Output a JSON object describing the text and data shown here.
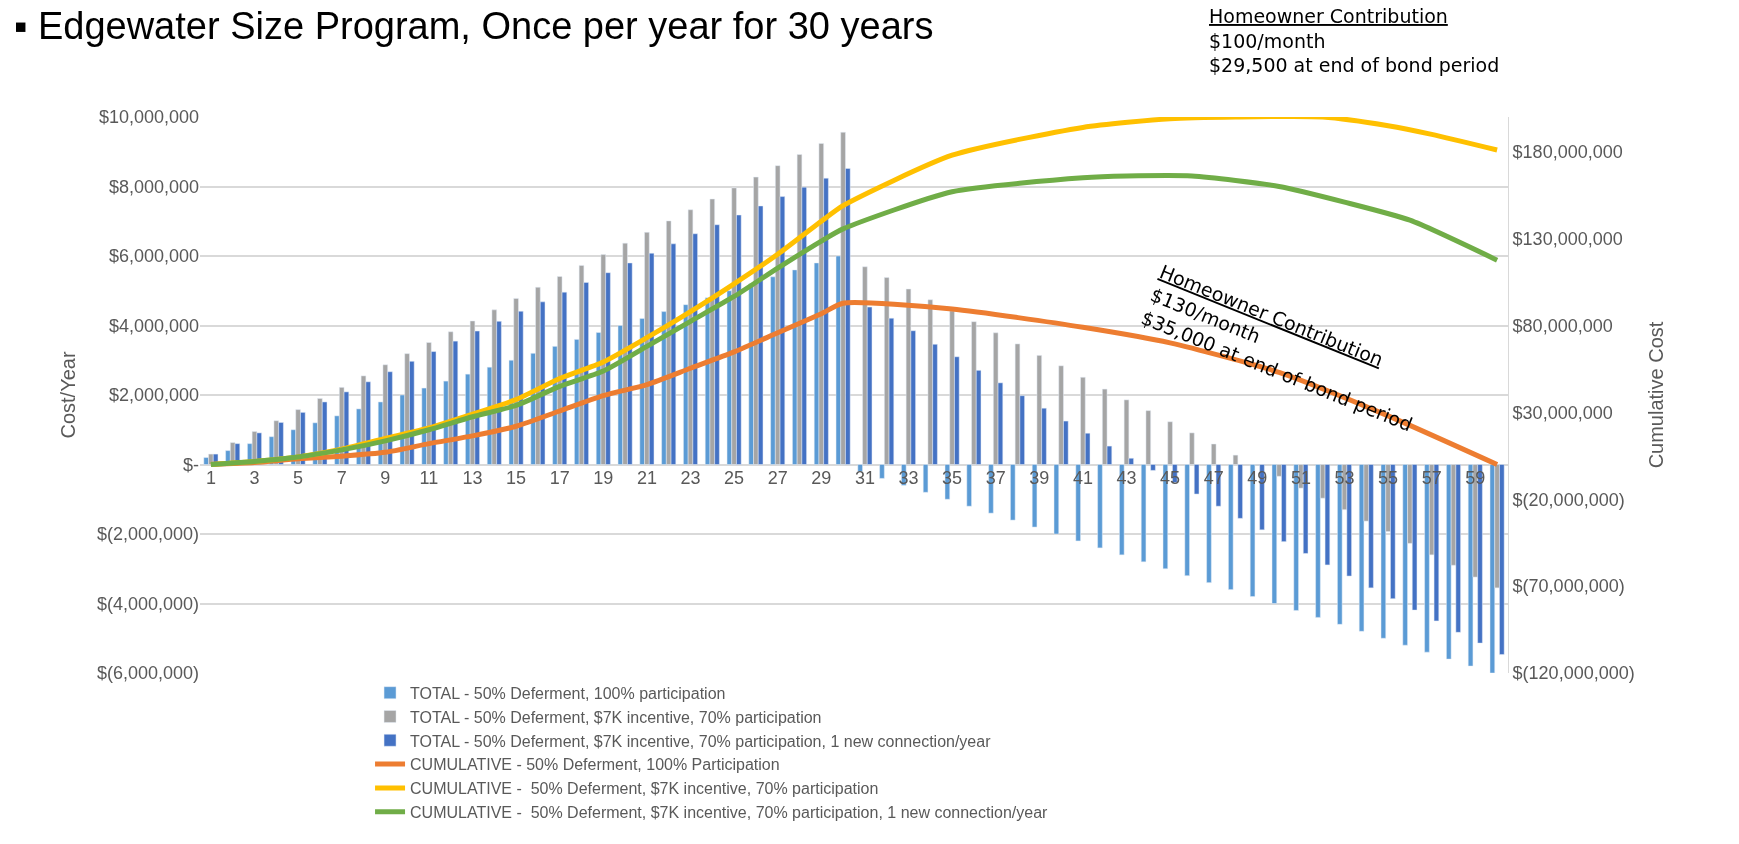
{
  "chart_data": {
    "type": "bar",
    "title": "▪ Edgewater Size Program, Once per year for 30 years",
    "ylabel": "Cost/Year",
    "y2label": "Cumulative Cost",
    "x": [
      1,
      2,
      3,
      4,
      5,
      6,
      7,
      8,
      9,
      10,
      11,
      12,
      13,
      14,
      15,
      16,
      17,
      18,
      19,
      20,
      21,
      22,
      23,
      24,
      25,
      26,
      27,
      28,
      29,
      30,
      31,
      32,
      33,
      34,
      35,
      36,
      37,
      38,
      39,
      40,
      41,
      42,
      43,
      44,
      45,
      46,
      47,
      48,
      49,
      50,
      51,
      52,
      53,
      54,
      55,
      56,
      57,
      58,
      59,
      60
    ],
    "xlim": [
      0.5,
      60.5
    ],
    "xticks": [
      1,
      3,
      5,
      7,
      9,
      11,
      13,
      15,
      17,
      19,
      21,
      23,
      25,
      27,
      29,
      31,
      33,
      35,
      37,
      39,
      41,
      43,
      45,
      47,
      49,
      51,
      53,
      55,
      57,
      59
    ],
    "ylim": [
      -6000000,
      10000000
    ],
    "yticks": [
      {
        "value": -6000000,
        "label": "$(6,000,000)"
      },
      {
        "value": -4000000,
        "label": "$(4,000,000)"
      },
      {
        "value": -2000000,
        "label": "$(2,000,000)"
      },
      {
        "value": 0,
        "label": "$-"
      },
      {
        "value": 2000000,
        "label": "$2,000,000"
      },
      {
        "value": 4000000,
        "label": "$4,000,000"
      },
      {
        "value": 6000000,
        "label": "$6,000,000"
      },
      {
        "value": 8000000,
        "label": "$8,000,000"
      },
      {
        "value": 10000000,
        "label": "$10,000,000"
      }
    ],
    "y2lim": [
      -120000000,
      200000000
    ],
    "y2ticks": [
      {
        "value": -120000000,
        "label": "$(120,000,000)"
      },
      {
        "value": -70000000,
        "label": "$(70,000,000)"
      },
      {
        "value": -20000000,
        "label": "$(20,000,000)"
      },
      {
        "value": 30000000,
        "label": "$30,000,000"
      },
      {
        "value": 80000000,
        "label": "$80,000,000"
      },
      {
        "value": 130000000,
        "label": "$130,000,000"
      },
      {
        "value": 180000000,
        "label": "$180,000,000"
      }
    ],
    "grid": "y",
    "legend": "bottom",
    "marker": "none",
    "line_style": "solid",
    "series": [
      {
        "name": "TOTAL - 50% Deferment, 100% participation",
        "color": "#5b9bd5",
        "values": [
          200000,
          400000,
          600000,
          800000,
          1000000,
          1200000,
          1400000,
          1600000,
          1800000,
          2000000,
          2200000,
          2400000,
          2600000,
          2800000,
          3000000,
          3200000,
          3400000,
          3600000,
          3800000,
          4000000,
          4200000,
          4400000,
          4600000,
          4800000,
          5000000,
          5200000,
          5400000,
          5600000,
          5800000,
          6000000,
          -200000,
          -400000,
          -600000,
          -800000,
          -1000000,
          -1200000,
          -1400000,
          -1600000,
          -1800000,
          -2000000,
          -2200000,
          -2400000,
          -2600000,
          -2800000,
          -3000000,
          -3200000,
          -3400000,
          -3600000,
          -3800000,
          -4000000,
          -4200000,
          -4400000,
          -4600000,
          -4800000,
          -5000000,
          -5200000,
          -5400000,
          -5600000,
          -5800000,
          -6000000
        ]
      },
      {
        "name": "TOTAL - 50% Deferment, $7K incentive, 70% participation",
        "color": "#a5a5a5",
        "values": [
          300000,
          630000,
          950000,
          1260000,
          1580000,
          1900000,
          2220000,
          2550000,
          2870000,
          3190000,
          3510000,
          3820000,
          4130000,
          4450000,
          4780000,
          5100000,
          5410000,
          5730000,
          6040000,
          6370000,
          6680000,
          7010000,
          7330000,
          7640000,
          7960000,
          8270000,
          8600000,
          8920000,
          9240000,
          9560000,
          5690000,
          5380000,
          5050000,
          4740000,
          4420000,
          4110000,
          3790000,
          3470000,
          3140000,
          2840000,
          2510000,
          2170000,
          1860000,
          1550000,
          1230000,
          910000,
          590000,
          270000,
          -30000,
          -340000,
          -680000,
          -970000,
          -1300000,
          -1630000,
          -1930000,
          -2270000,
          -2600000,
          -2900000,
          -3240000,
          -3550000
        ]
      },
      {
        "name": "TOTAL - 50% Deferment, $7K incentive, 70% participation, 1 new connection/year",
        "color": "#4472c4",
        "values": [
          300000,
          600000,
          910000,
          1210000,
          1500000,
          1800000,
          2090000,
          2380000,
          2670000,
          2970000,
          3250000,
          3550000,
          3840000,
          4120000,
          4410000,
          4680000,
          4960000,
          5240000,
          5520000,
          5800000,
          6080000,
          6350000,
          6640000,
          6900000,
          7180000,
          7440000,
          7710000,
          7980000,
          8240000,
          8520000,
          4530000,
          4210000,
          3850000,
          3460000,
          3100000,
          2710000,
          2350000,
          1980000,
          1620000,
          1250000,
          900000,
          530000,
          180000,
          -170000,
          -520000,
          -850000,
          -1200000,
          -1550000,
          -1880000,
          -2220000,
          -2560000,
          -2890000,
          -3210000,
          -3550000,
          -3860000,
          -4190000,
          -4500000,
          -4830000,
          -5140000,
          -5470000
        ]
      },
      {
        "name": "CUMULATIVE - 50% Deferment, 100% Participation",
        "type": "line",
        "axis": "y2",
        "color": "#ed7d31",
        "x": [
          1,
          3,
          5,
          7,
          9,
          11,
          13,
          15,
          17,
          19,
          21,
          23,
          25,
          27,
          29,
          30,
          35,
          41,
          45,
          50,
          55,
          60
        ],
        "values": [
          0,
          1100000,
          3300000,
          4800000,
          7000000,
          12000000,
          16500000,
          22000000,
          30800000,
          39600000,
          46000000,
          55400000,
          64800000,
          75800000,
          86800000,
          92800000,
          89500000,
          79000000,
          70000000,
          53000000,
          28000000,
          0
        ]
      },
      {
        "name": "CUMULATIVE -  50% Deferment, $7K incentive, 70% participation",
        "type": "line",
        "axis": "y2",
        "color": "#ffc000",
        "x": [
          1,
          3,
          5,
          7,
          9,
          11,
          13,
          15,
          17,
          19,
          21,
          23,
          25,
          27,
          29,
          30,
          35,
          41,
          45,
          48,
          52,
          55,
          57,
          60
        ],
        "values": [
          0,
          1800000,
          4400000,
          8800000,
          15000000,
          21000000,
          29000000,
          37400000,
          49500000,
          59000000,
          73000000,
          88000000,
          104000000,
          121000000,
          140000000,
          149000000,
          178000000,
          194000000,
          199000000,
          200000000,
          200000000,
          195000000,
          190000000,
          181000000
        ]
      },
      {
        "name": "CUMULATIVE -  50% Deferment, $7K incentive, 70% participation, 1 new connection/year",
        "type": "line",
        "axis": "y2",
        "color": "#70ad47",
        "x": [
          1,
          3,
          5,
          7,
          9,
          11,
          13,
          15,
          17,
          19,
          21,
          23,
          25,
          27,
          29,
          30,
          35,
          41,
          43,
          46,
          50,
          53,
          56,
          60
        ],
        "values": [
          0,
          1700000,
          4300000,
          8400000,
          13600000,
          20000000,
          27500000,
          34000000,
          45000000,
          53800000,
          68000000,
          82400000,
          96700000,
          113000000,
          128600000,
          135600000,
          157000000,
          165000000,
          166000000,
          166000000,
          160000000,
          151000000,
          140600000,
          117600000
        ]
      }
    ],
    "annotations": [
      "Homeowner Contribution\n$100/month\n$29,500 at end of bond period",
      "Homeowner Contribution\n$130/month\n$35,000 at end of bond period"
    ]
  }
}
